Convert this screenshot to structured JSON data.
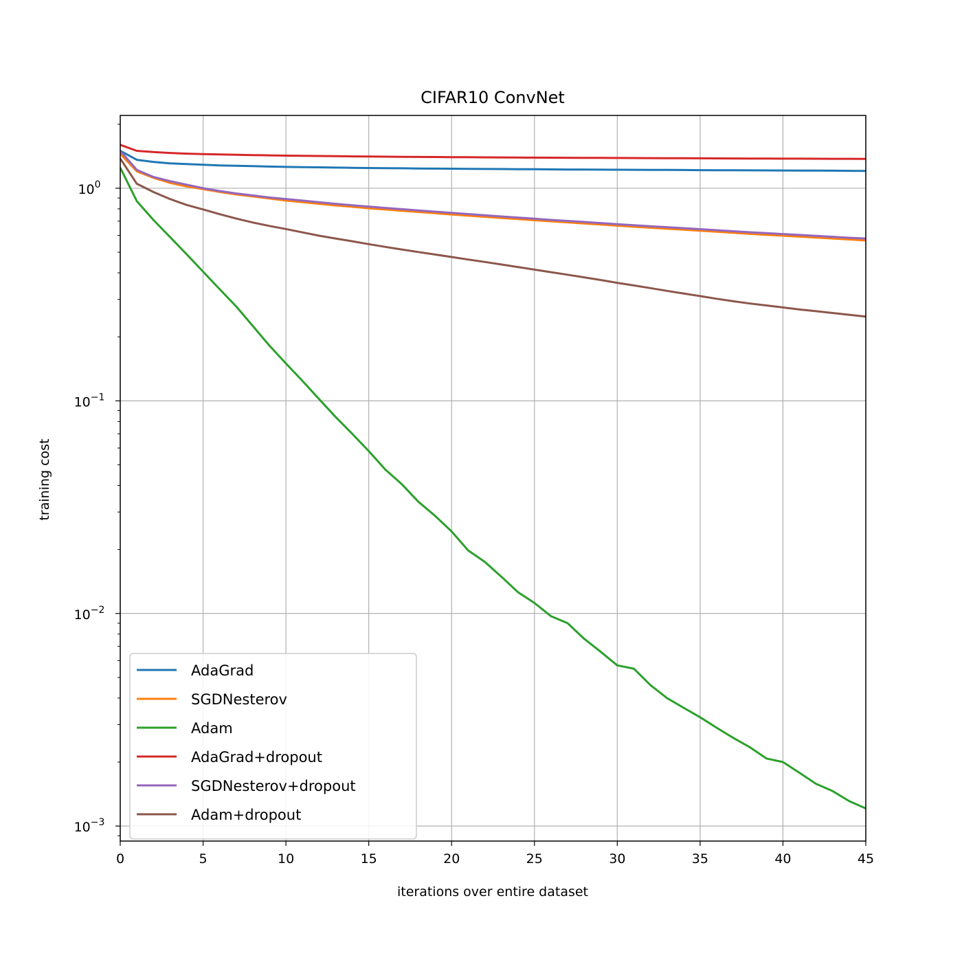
{
  "chart_data": {
    "type": "line",
    "title": "CIFAR10 ConvNet",
    "xlabel": "iterations over entire dataset",
    "ylabel": "training cost",
    "xlim": [
      0,
      45
    ],
    "ylim": [
      0.00085,
      2.2
    ],
    "yscale": "log",
    "grid": true,
    "legend_position": "lower-left",
    "x_ticks": [
      {
        "value": 0,
        "label": "0"
      },
      {
        "value": 5,
        "label": "5"
      },
      {
        "value": 10,
        "label": "10"
      },
      {
        "value": 15,
        "label": "15"
      },
      {
        "value": 20,
        "label": "20"
      },
      {
        "value": 25,
        "label": "25"
      },
      {
        "value": 30,
        "label": "30"
      },
      {
        "value": 35,
        "label": "35"
      },
      {
        "value": 40,
        "label": "40"
      },
      {
        "value": 45,
        "label": "45"
      }
    ],
    "y_ticks": [
      {
        "value": 1,
        "base": "10",
        "exp": "0"
      },
      {
        "value": 0.1,
        "base": "10",
        "exp": "−1"
      },
      {
        "value": 0.01,
        "base": "10",
        "exp": "−2"
      },
      {
        "value": 0.001,
        "base": "10",
        "exp": "−3"
      }
    ],
    "series": [
      {
        "name": "AdaGrad",
        "color": "#1f77b4",
        "x": [
          0,
          1,
          2,
          3,
          4,
          5,
          6,
          7,
          8,
          9,
          10,
          11,
          12,
          13,
          14,
          15,
          16,
          17,
          18,
          19,
          20,
          21,
          22,
          23,
          24,
          25,
          26,
          27,
          28,
          29,
          30,
          31,
          32,
          33,
          34,
          35,
          36,
          37,
          38,
          39,
          40,
          41,
          42,
          43,
          44,
          45
        ],
        "y": [
          1.5,
          1.36,
          1.33,
          1.31,
          1.3,
          1.29,
          1.28,
          1.275,
          1.27,
          1.265,
          1.26,
          1.257,
          1.254,
          1.251,
          1.248,
          1.245,
          1.243,
          1.241,
          1.239,
          1.237,
          1.236,
          1.234,
          1.232,
          1.231,
          1.229,
          1.228,
          1.227,
          1.225,
          1.224,
          1.223,
          1.222,
          1.221,
          1.22,
          1.219,
          1.218,
          1.217,
          1.216,
          1.215,
          1.214,
          1.213,
          1.212,
          1.211,
          1.21,
          1.209,
          1.208,
          1.207
        ]
      },
      {
        "name": "SGDNesterov",
        "color": "#ff7f0e",
        "x": [
          0,
          1,
          2,
          3,
          4,
          5,
          6,
          7,
          8,
          9,
          10,
          11,
          12,
          13,
          14,
          15,
          16,
          17,
          18,
          19,
          20,
          21,
          22,
          23,
          24,
          25,
          26,
          27,
          28,
          29,
          30,
          31,
          32,
          33,
          34,
          35,
          36,
          37,
          38,
          39,
          40,
          41,
          42,
          43,
          44,
          45
        ],
        "y": [
          1.45,
          1.2,
          1.12,
          1.06,
          1.02,
          0.99,
          0.96,
          0.935,
          0.915,
          0.895,
          0.875,
          0.86,
          0.845,
          0.83,
          0.818,
          0.805,
          0.794,
          0.783,
          0.773,
          0.763,
          0.753,
          0.743,
          0.734,
          0.725,
          0.716,
          0.707,
          0.699,
          0.691,
          0.683,
          0.675,
          0.667,
          0.659,
          0.652,
          0.645,
          0.638,
          0.631,
          0.624,
          0.617,
          0.61,
          0.604,
          0.598,
          0.592,
          0.586,
          0.58,
          0.574,
          0.568
        ]
      },
      {
        "name": "Adam",
        "color": "#2ca02c",
        "x": [
          0,
          1,
          2,
          3,
          4,
          5,
          6,
          7,
          8,
          9,
          10,
          11,
          12,
          13,
          14,
          15,
          16,
          17,
          18,
          19,
          20,
          21,
          22,
          23,
          24,
          25,
          26,
          27,
          28,
          29,
          30,
          31,
          32,
          33,
          34,
          35,
          36,
          37,
          38,
          39,
          40,
          41,
          42,
          43,
          44,
          45
        ],
        "y": [
          1.25,
          0.87,
          0.71,
          0.59,
          0.49,
          0.405,
          0.335,
          0.278,
          0.225,
          0.182,
          0.15,
          0.124,
          0.102,
          0.084,
          0.07,
          0.058,
          0.0475,
          0.0405,
          0.0335,
          0.0288,
          0.0243,
          0.0198,
          0.0175,
          0.0149,
          0.0126,
          0.0112,
          0.0097,
          0.009,
          0.0076,
          0.0066,
          0.0057,
          0.0055,
          0.0046,
          0.004,
          0.0036,
          0.00325,
          0.0029,
          0.0026,
          0.00235,
          0.00208,
          0.002,
          0.00178,
          0.00158,
          0.00146,
          0.00131,
          0.00121
        ]
      },
      {
        "name": "AdaGrad+dropout",
        "color": "#d62728",
        "x": [
          0,
          1,
          2,
          3,
          4,
          5,
          6,
          7,
          8,
          9,
          10,
          11,
          12,
          13,
          14,
          15,
          16,
          17,
          18,
          19,
          20,
          21,
          22,
          23,
          24,
          25,
          26,
          27,
          28,
          29,
          30,
          31,
          32,
          33,
          34,
          35,
          36,
          37,
          38,
          39,
          40,
          41,
          42,
          43,
          44,
          45
        ],
        "y": [
          1.6,
          1.5,
          1.48,
          1.465,
          1.455,
          1.448,
          1.442,
          1.437,
          1.432,
          1.428,
          1.424,
          1.421,
          1.418,
          1.415,
          1.412,
          1.41,
          1.408,
          1.406,
          1.404,
          1.402,
          1.4,
          1.399,
          1.397,
          1.396,
          1.394,
          1.393,
          1.392,
          1.391,
          1.39,
          1.389,
          1.388,
          1.387,
          1.386,
          1.385,
          1.384,
          1.383,
          1.382,
          1.381,
          1.38,
          1.379,
          1.378,
          1.378,
          1.377,
          1.376,
          1.376,
          1.375
        ]
      },
      {
        "name": "SGDNesterov+dropout",
        "color": "#9467bd",
        "x": [
          0,
          1,
          2,
          3,
          4,
          5,
          6,
          7,
          8,
          9,
          10,
          11,
          12,
          13,
          14,
          15,
          16,
          17,
          18,
          19,
          20,
          21,
          22,
          23,
          24,
          25,
          26,
          27,
          28,
          29,
          30,
          31,
          32,
          33,
          34,
          35,
          36,
          37,
          38,
          39,
          40,
          41,
          42,
          43,
          44,
          45
        ],
        "y": [
          1.5,
          1.22,
          1.13,
          1.08,
          1.04,
          1.0,
          0.97,
          0.945,
          0.925,
          0.905,
          0.89,
          0.875,
          0.86,
          0.845,
          0.832,
          0.82,
          0.808,
          0.797,
          0.786,
          0.776,
          0.766,
          0.756,
          0.746,
          0.737,
          0.728,
          0.719,
          0.71,
          0.702,
          0.694,
          0.686,
          0.678,
          0.67,
          0.663,
          0.656,
          0.649,
          0.642,
          0.635,
          0.628,
          0.621,
          0.615,
          0.609,
          0.603,
          0.597,
          0.591,
          0.585,
          0.58
        ]
      },
      {
        "name": "Adam+dropout",
        "color": "#8c564b",
        "x": [
          0,
          1,
          2,
          3,
          4,
          5,
          6,
          7,
          8,
          9,
          10,
          11,
          12,
          13,
          14,
          15,
          16,
          17,
          18,
          19,
          20,
          21,
          22,
          23,
          24,
          25,
          26,
          27,
          28,
          29,
          30,
          31,
          32,
          33,
          34,
          35,
          36,
          37,
          38,
          39,
          40,
          41,
          42,
          43,
          44,
          45
        ],
        "y": [
          1.38,
          1.05,
          0.96,
          0.89,
          0.835,
          0.795,
          0.755,
          0.72,
          0.69,
          0.665,
          0.643,
          0.62,
          0.598,
          0.58,
          0.563,
          0.546,
          0.53,
          0.515,
          0.501,
          0.488,
          0.475,
          0.462,
          0.45,
          0.438,
          0.426,
          0.414,
          0.403,
          0.392,
          0.381,
          0.37,
          0.359,
          0.349,
          0.339,
          0.329,
          0.32,
          0.311,
          0.302,
          0.294,
          0.287,
          0.281,
          0.275,
          0.269,
          0.264,
          0.259,
          0.254,
          0.249
        ]
      }
    ]
  }
}
